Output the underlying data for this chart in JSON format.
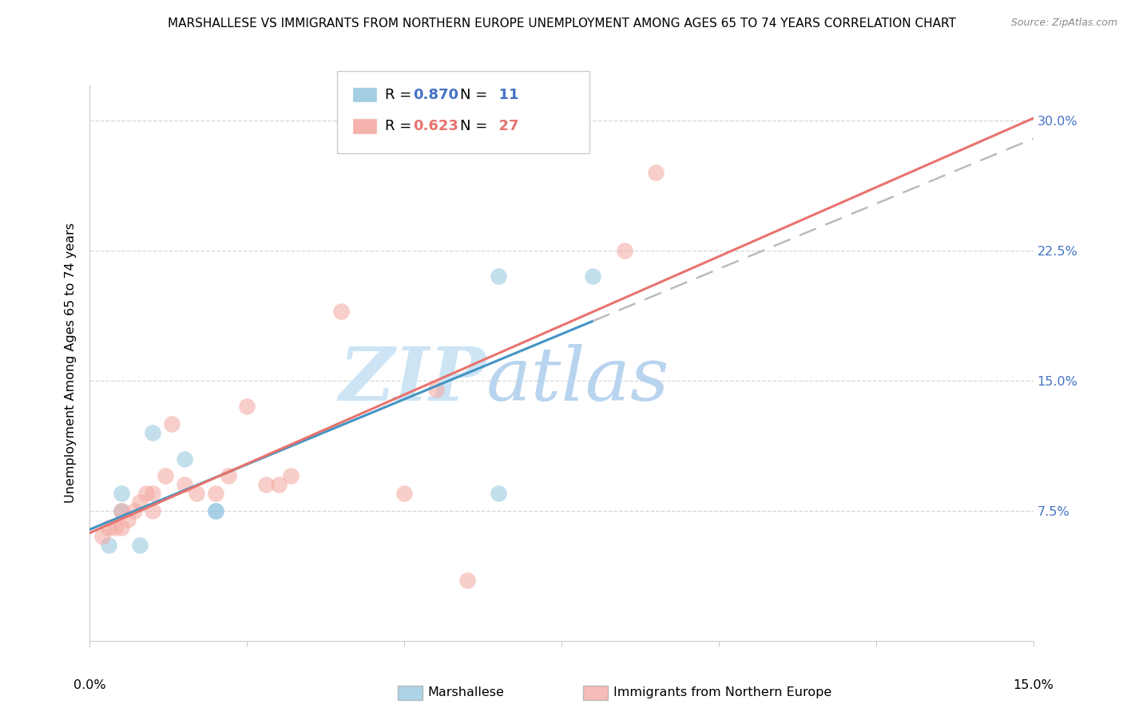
{
  "title": "MARSHALLESE VS IMMIGRANTS FROM NORTHERN EUROPE UNEMPLOYMENT AMONG AGES 65 TO 74 YEARS CORRELATION CHART",
  "source": "Source: ZipAtlas.com",
  "ylabel": "Unemployment Among Ages 65 to 74 years",
  "xlim": [
    0.0,
    0.15
  ],
  "ylim": [
    0.0,
    0.32
  ],
  "yticks": [
    0.075,
    0.15,
    0.225,
    0.3
  ],
  "ytick_labels": [
    "7.5%",
    "15.0%",
    "22.5%",
    "30.0%"
  ],
  "marshallese_R": 0.87,
  "marshallese_N": 11,
  "northern_europe_R": 0.623,
  "northern_europe_N": 27,
  "marshallese_color": "#92c5de",
  "northern_europe_color": "#f4a6a0",
  "trend_blue": "#4393c3",
  "trend_pink": "#e8736d",
  "dashed_line_color": "#bbbbbb",
  "marshallese_x": [
    0.003,
    0.005,
    0.005,
    0.008,
    0.01,
    0.015,
    0.02,
    0.02,
    0.065,
    0.065,
    0.08
  ],
  "marshallese_y": [
    0.055,
    0.085,
    0.075,
    0.055,
    0.12,
    0.105,
    0.075,
    0.075,
    0.085,
    0.21,
    0.21
  ],
  "northern_europe_x": [
    0.002,
    0.003,
    0.004,
    0.005,
    0.005,
    0.006,
    0.007,
    0.008,
    0.009,
    0.01,
    0.01,
    0.012,
    0.013,
    0.015,
    0.017,
    0.02,
    0.022,
    0.025,
    0.028,
    0.03,
    0.032,
    0.04,
    0.05,
    0.055,
    0.06,
    0.085,
    0.09
  ],
  "northern_europe_y": [
    0.06,
    0.065,
    0.065,
    0.065,
    0.075,
    0.07,
    0.075,
    0.08,
    0.085,
    0.075,
    0.085,
    0.095,
    0.125,
    0.09,
    0.085,
    0.085,
    0.095,
    0.135,
    0.09,
    0.09,
    0.095,
    0.19,
    0.085,
    0.145,
    0.035,
    0.225,
    0.27
  ],
  "background_color": "#ffffff",
  "grid_color": "#cccccc",
  "watermark_zip_color": "#cde4f5",
  "watermark_atlas_color": "#b8d4ef"
}
